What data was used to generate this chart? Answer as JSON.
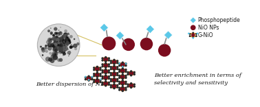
{
  "bg_color": "#ffffff",
  "phosphopeptide_color": "#5bc8e8",
  "nio_color": "#7b0d1e",
  "graphene_node_color": "#2a2a2a",
  "graphene_bond_color": "#c8860a",
  "graphene_highlight_color": "#5bc8e8",
  "text_color": "#1a1a1a",
  "legend_labels": [
    "Phosphopeptide",
    "NiO NPs",
    "G-NiO"
  ],
  "bottom_left_text": "Better dispersion of NPs",
  "bottom_right_text": "Better enrichment in terms of\nselectivity and sensitivity",
  "line_color": "#888888",
  "arrow_color": "#d4c060",
  "micro_bg": "#c8c8c8",
  "micro_edge": "#aaaaaa"
}
